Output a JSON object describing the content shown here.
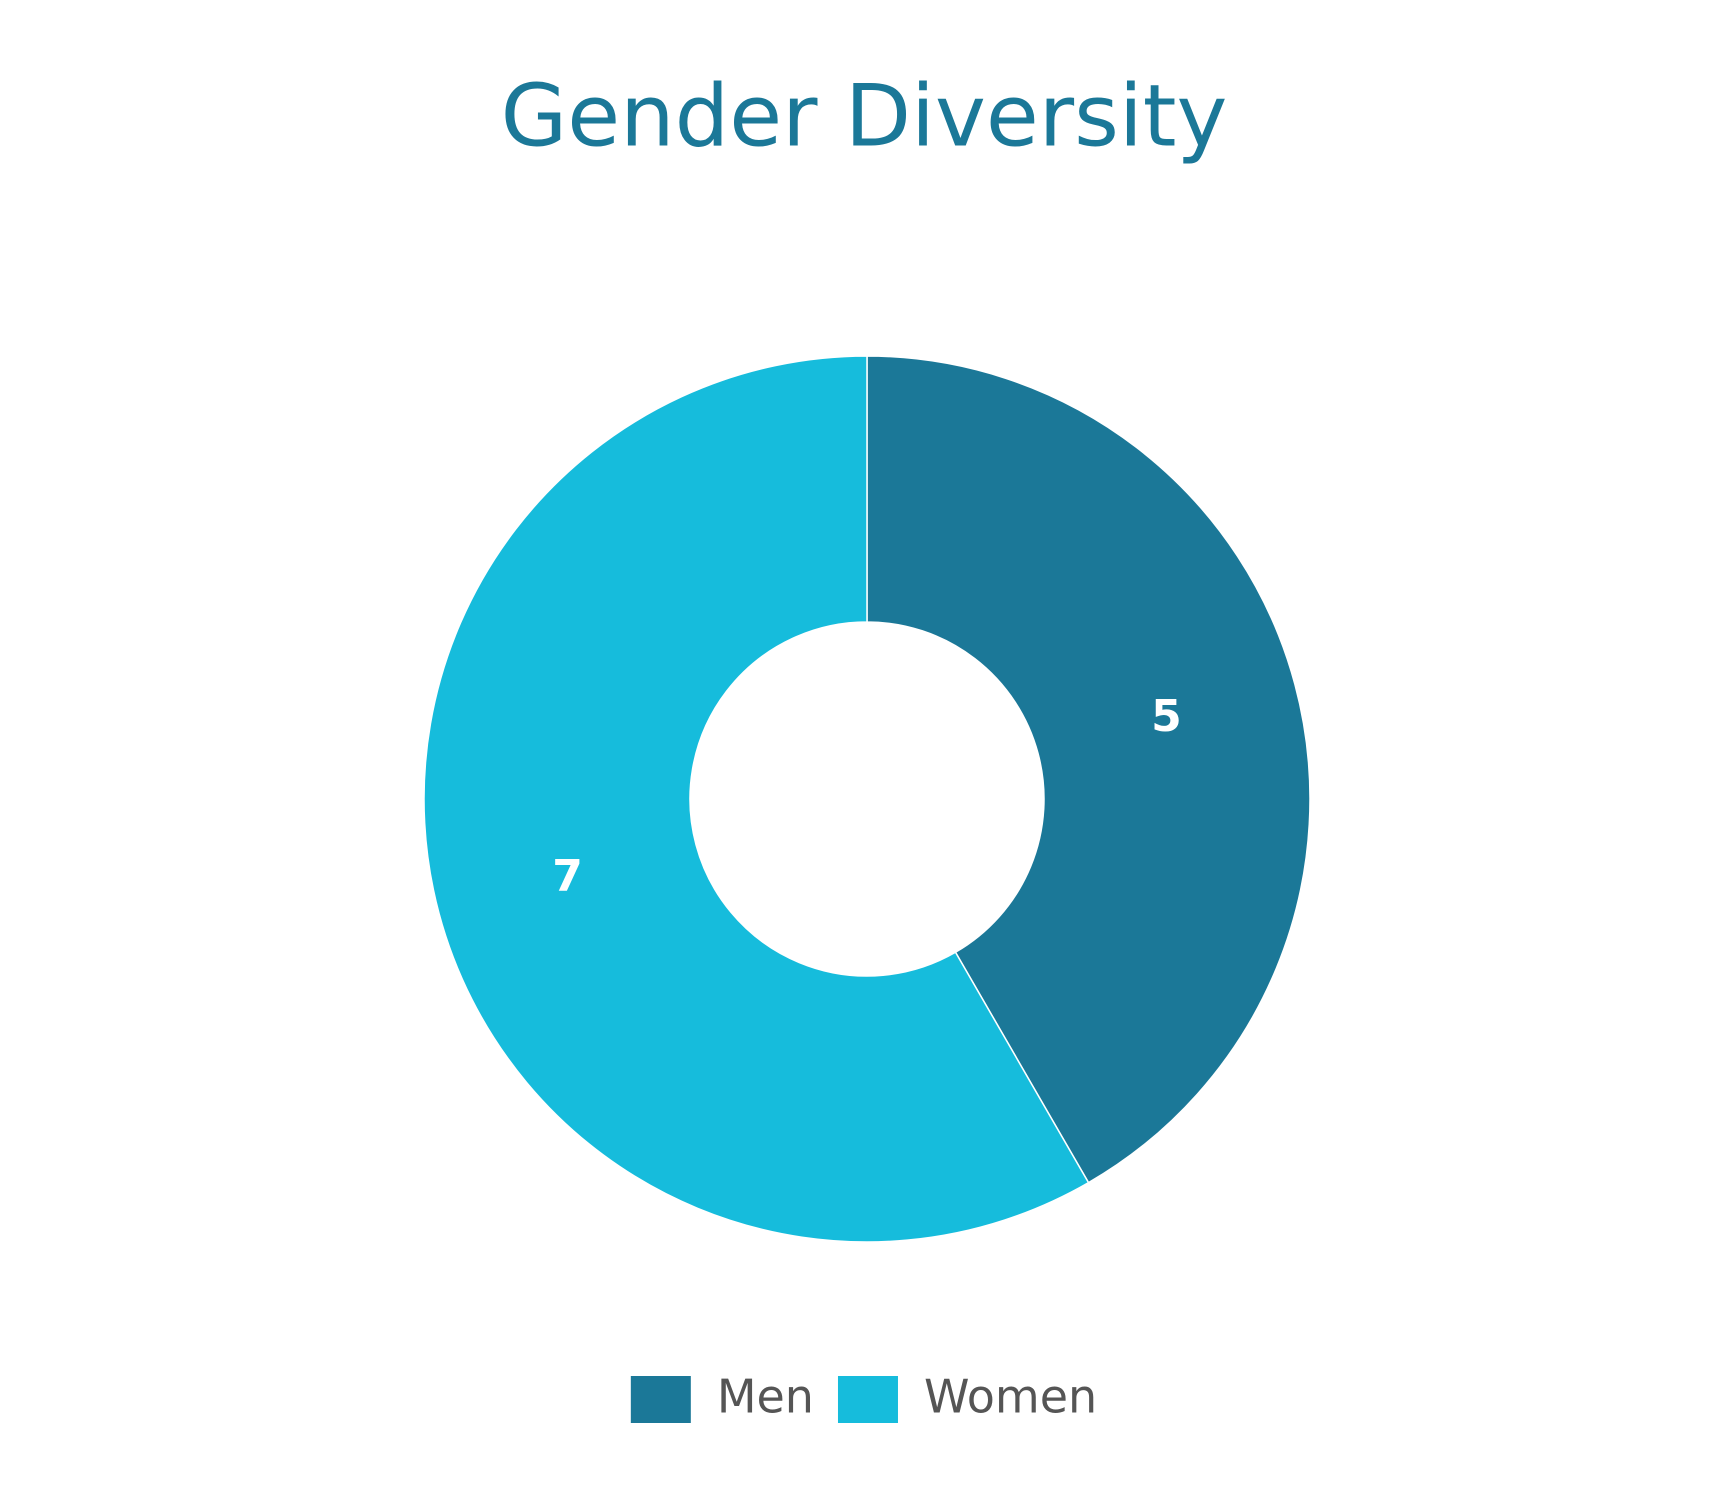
{
  "chart_data": {
    "type": "doughnut",
    "title": "Gender Diversity",
    "categories": [
      "Men",
      "Women"
    ],
    "values": [
      5,
      7
    ],
    "colors": [
      "#1b7898",
      "#16bcdc"
    ],
    "legend": "bottom"
  }
}
